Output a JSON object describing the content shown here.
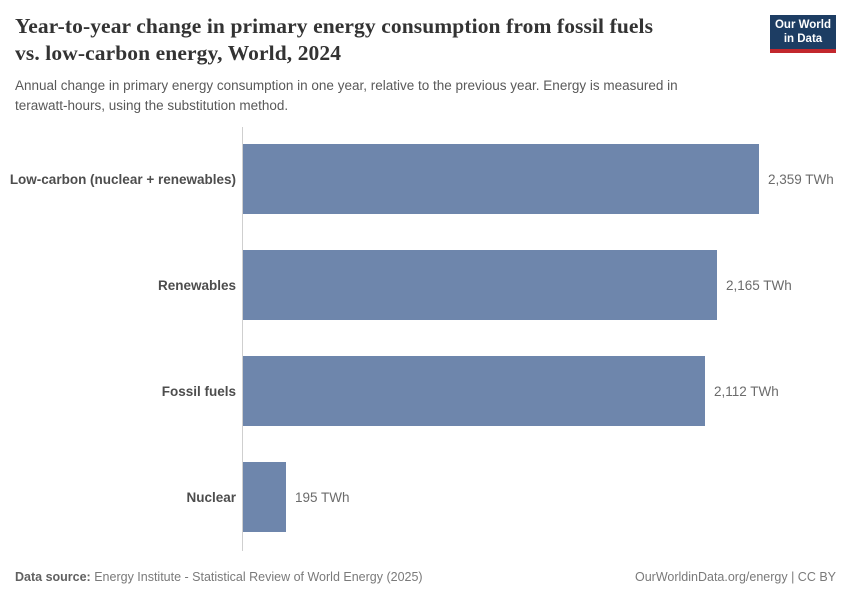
{
  "header": {
    "title_lines": [
      "Year-to-year change in primary energy consumption from fossil fuels",
      "vs. low-carbon energy, World, 2024"
    ],
    "subtitle_lines": [
      "Annual change in primary energy consumption in one year, relative to the previous year. Energy is measured in",
      "terawatt-hours, using the substitution method."
    ]
  },
  "logo": {
    "line1": "Our World",
    "line2": "in Data",
    "bg_color": "#1d3d63",
    "accent_color": "#c2272d"
  },
  "chart_data": {
    "type": "bar",
    "orientation": "horizontal",
    "title": "Year-to-year change in primary energy consumption from fossil fuels vs. low-carbon energy, World, 2024",
    "subtitle": "Annual change in primary energy consumption in one year, relative to the previous year. Energy is measured in terawatt-hours, using the substitution method.",
    "categories": [
      "Low-carbon (nuclear + renewables)",
      "Renewables",
      "Fossil fuels",
      "Nuclear"
    ],
    "values": [
      2359,
      2165,
      2112,
      195
    ],
    "value_labels": [
      "2,359 TWh",
      "2,165 TWh",
      "2,112 TWh",
      "195 TWh"
    ],
    "unit": "TWh",
    "xlim": [
      0,
      2359
    ],
    "bar_color": "#6e86ac",
    "axis_color": "#cfcfcf",
    "grid": false,
    "legend": "none"
  },
  "footer": {
    "source_label": "Data source:",
    "source_text": " Energy Institute - Statistical Review of World Energy (2025)",
    "right_text": "OurWorldinData.org/energy | CC BY"
  }
}
